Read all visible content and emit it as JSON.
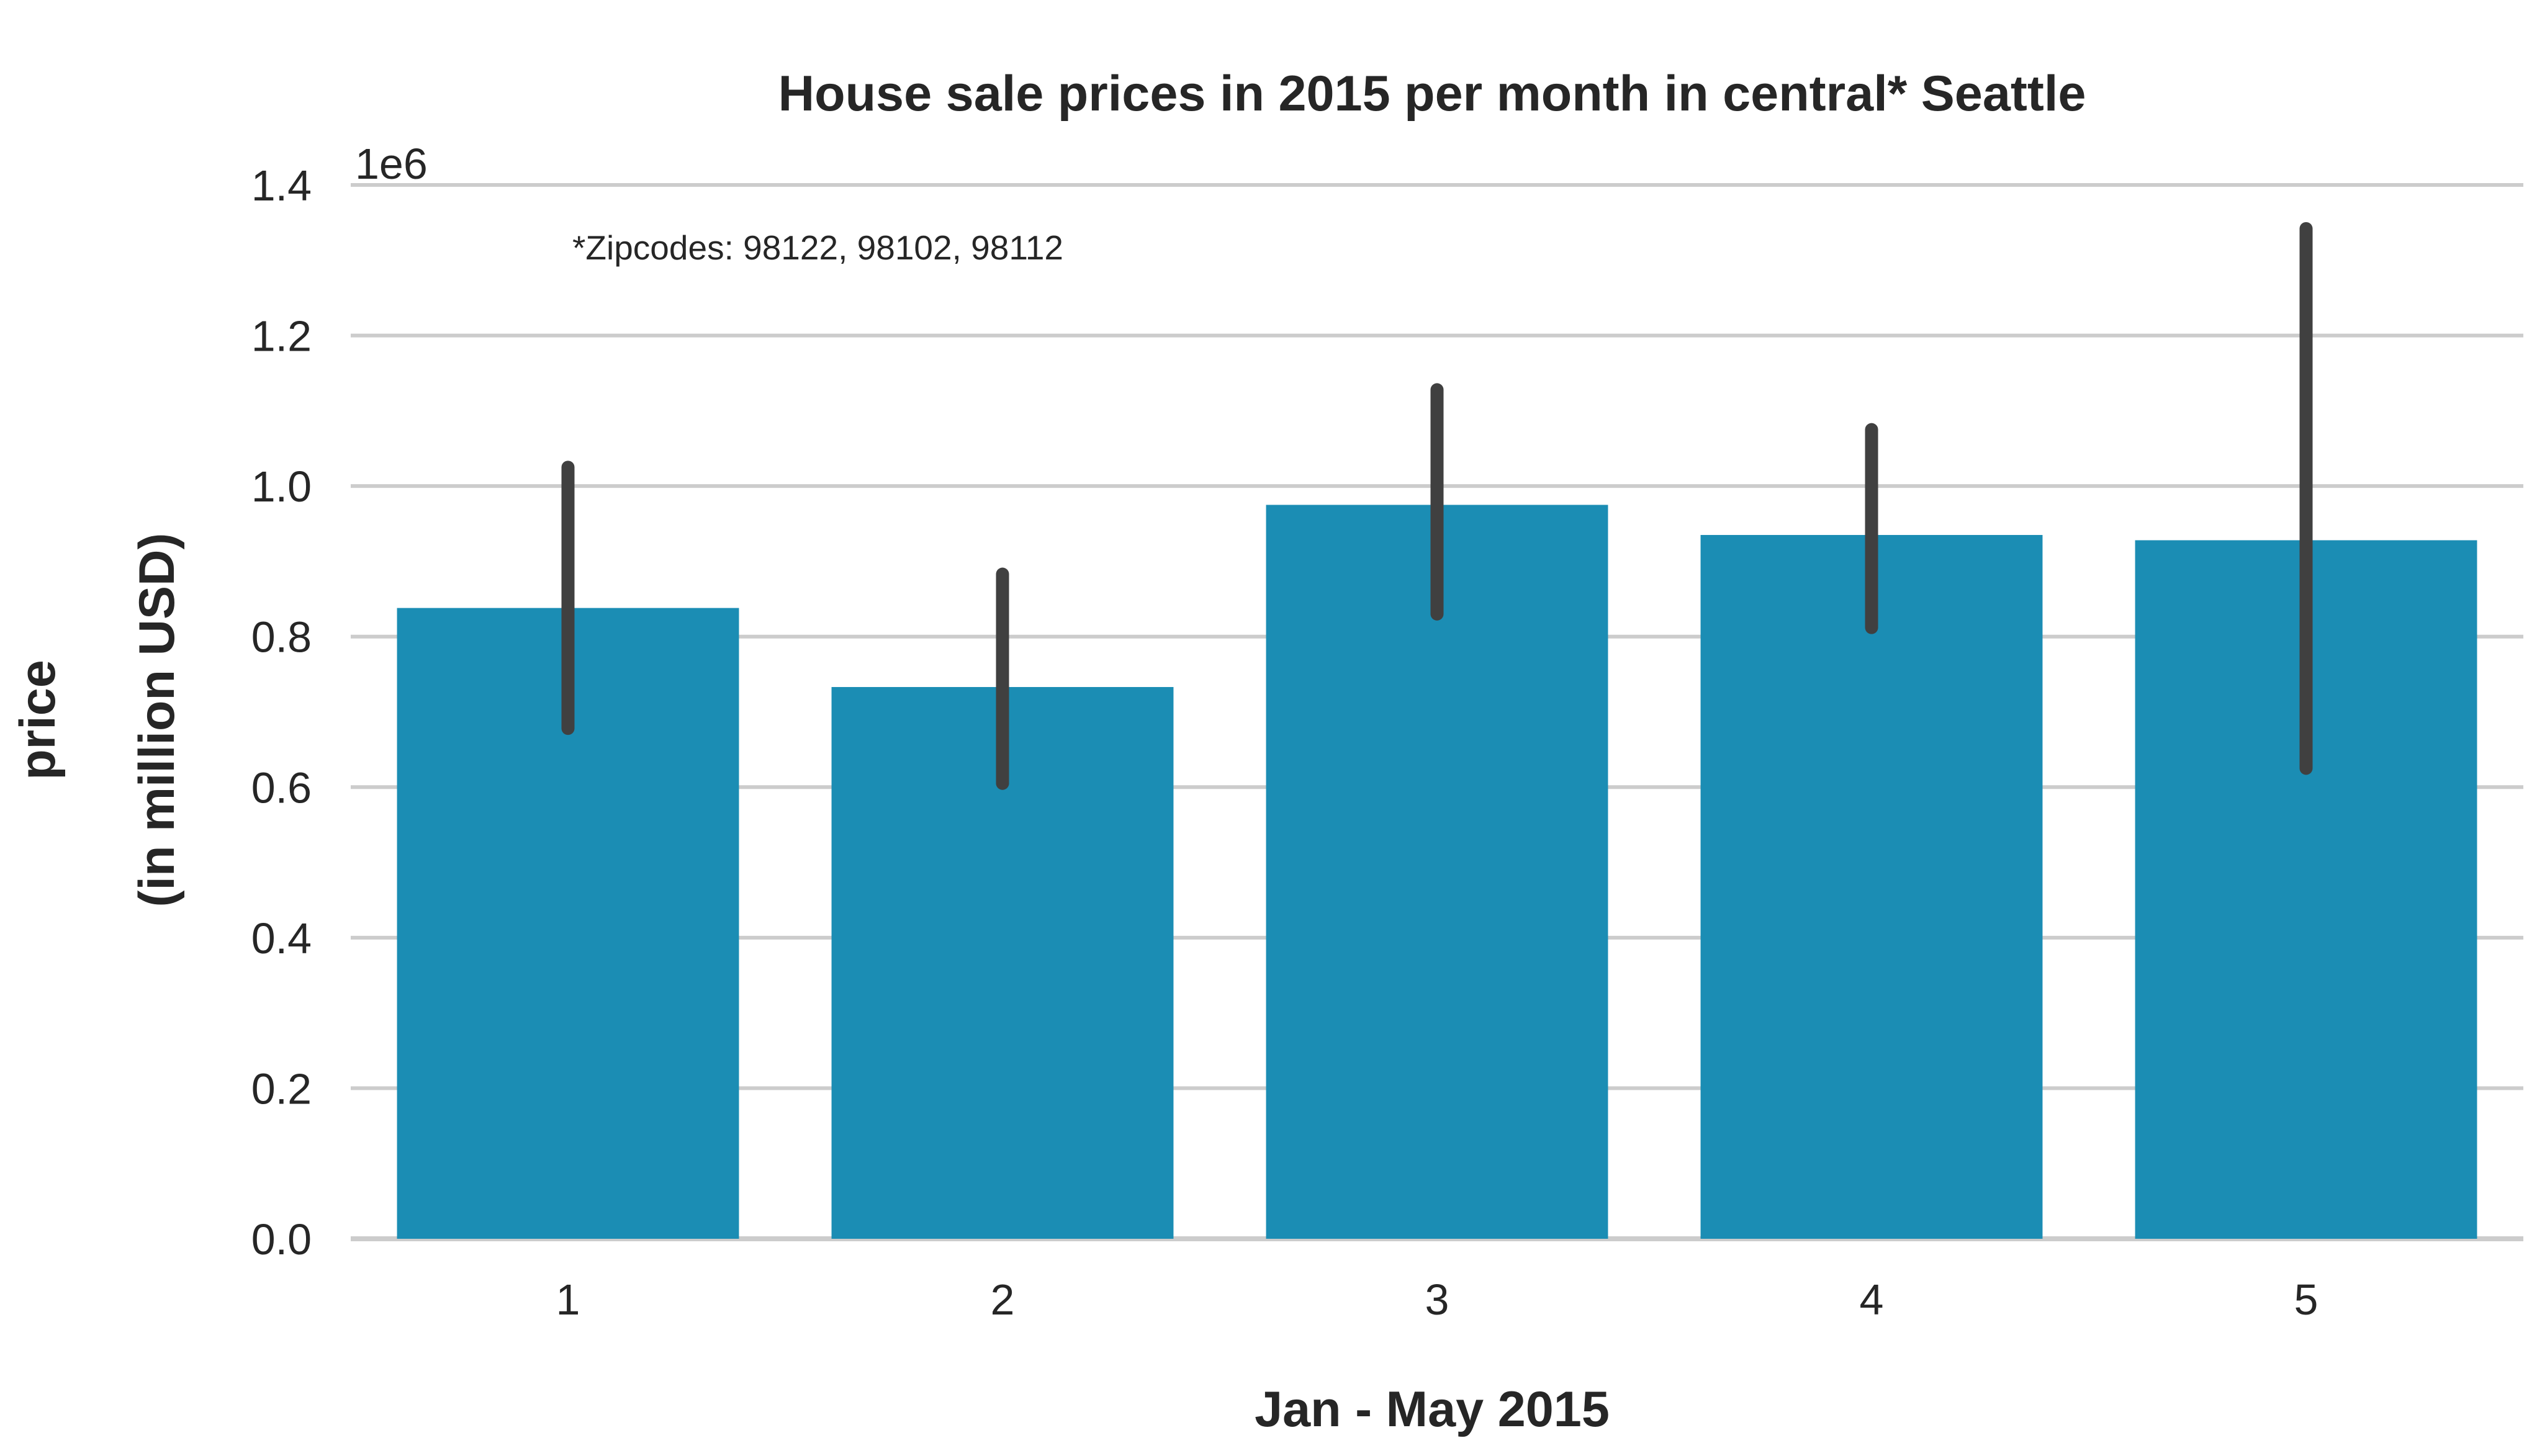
{
  "chart_data": {
    "type": "bar",
    "title": "House sale prices in 2015 per month in central* Seattle",
    "xlabel": "Jan - May 2015",
    "ylabel_lines": [
      "price",
      "(in million USD)"
    ],
    "y_offset_text": "1e6",
    "annotation": "*Zipcodes: 98122, 98102, 98112",
    "categories": [
      "1",
      "2",
      "3",
      "4",
      "5"
    ],
    "values": [
      838000,
      733000,
      975000,
      935000,
      928000
    ],
    "error_low": [
      678000,
      605000,
      830000,
      812000,
      625000
    ],
    "error_high": [
      1025000,
      883000,
      1128000,
      1075000,
      1342000
    ],
    "ylim": [
      0,
      1400000
    ],
    "yticks": [
      0,
      200000,
      400000,
      600000,
      800000,
      1000000,
      1200000,
      1400000
    ],
    "ytick_labels": [
      "0.0",
      "0.2",
      "0.4",
      "0.6",
      "0.8",
      "1.0",
      "1.2",
      "1.4"
    ],
    "grid": true,
    "colors": {
      "bar": "#1b8db4",
      "error_bar": "#404040",
      "grid": "#cccccc",
      "text": "#262626"
    }
  }
}
